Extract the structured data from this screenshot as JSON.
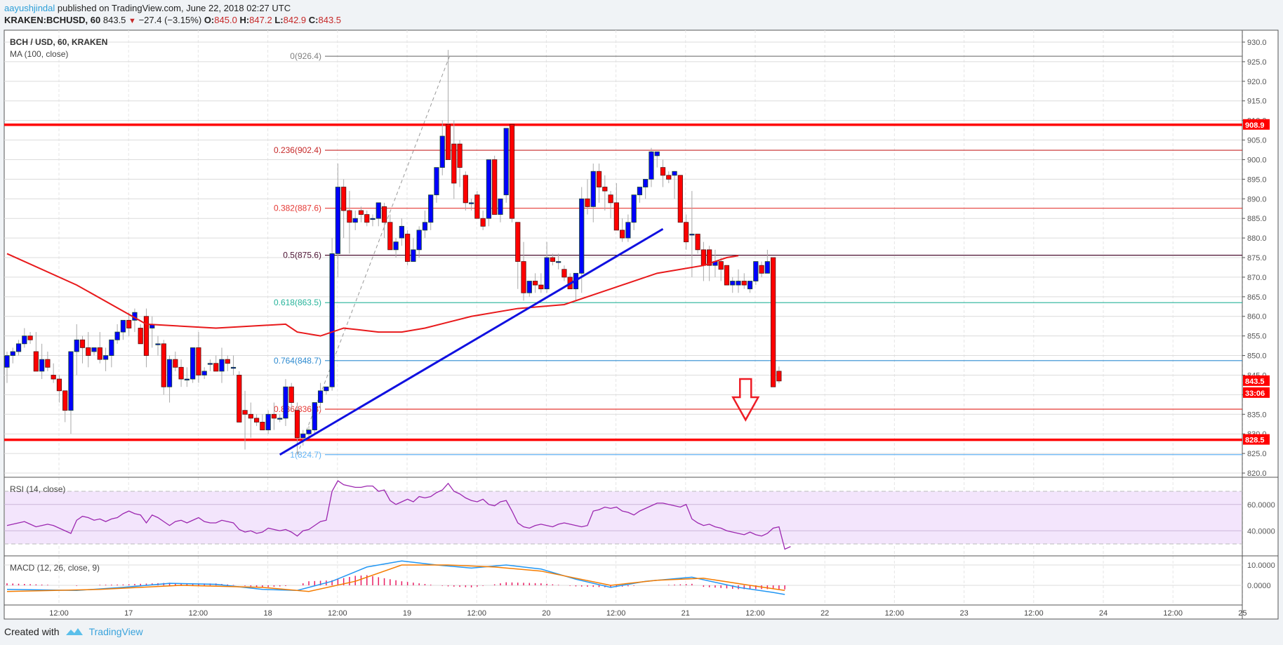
{
  "header": {
    "author": "aayushjindal",
    "published": "published on TradingView.com, June 22, 2018 02:27 UTC",
    "symbol": "KRAKEN:BCHUSD, 60",
    "last": "843.5",
    "change": "−27.4 (−3.15%)",
    "open_label": "O:",
    "open": "845.0",
    "high_label": "H:",
    "high": "847.2",
    "low_label": "L:",
    "low": "842.9",
    "close_label": "C:",
    "close": "843.5",
    "direction_icon": "triangle-down-icon"
  },
  "legend": {
    "title": "BCH / USD, 60, KRAKEN",
    "ma": "MA (100, close)",
    "rsi": "RSI (14, close)",
    "macd": "MACD (12, 26, close, 9)"
  },
  "footer": {
    "created_with": "Created with",
    "brand": "TradingView"
  },
  "colors": {
    "bull": "#0000ff",
    "bear": "#ff0000",
    "ma": "#e8191b",
    "support_resistance": "#ff0000",
    "trendline": "#1010e0",
    "rsi": "#9c27b0",
    "rsi_band": "#f3e5fc",
    "macd_line": "#2196f3",
    "signal_line": "#f57c00",
    "histogram": "#e91e63",
    "fib_0": "#808080",
    "fib_236": "#c62828",
    "fib_382": "#e53935",
    "fib_5": "#4a1030",
    "fib_618": "#26b39a",
    "fib_764": "#2e8bd0",
    "fib_886": "#e53935",
    "fib_1": "#64b5f6"
  },
  "chart_data": {
    "type": "candlestick",
    "title": "BCH / USD, 60, KRAKEN",
    "price_axis": {
      "min": 820,
      "max": 930,
      "ticks": [
        "930.0",
        "925.0",
        "920.0",
        "915.0",
        "910.0",
        "905.0",
        "900.0",
        "895.0",
        "890.0",
        "885.0",
        "880.0",
        "875.0",
        "870.0",
        "865.0",
        "860.0",
        "855.0",
        "850.0",
        "845.0",
        "840.0",
        "835.0",
        "830.0",
        "825.0",
        "820.0"
      ]
    },
    "time_axis": [
      "12:00",
      "17",
      "12:00",
      "18",
      "12:00",
      "19",
      "12:00",
      "20",
      "12:00",
      "21",
      "12:00",
      "22",
      "12:00",
      "23",
      "12:00",
      "24",
      "12:00",
      "25"
    ],
    "price_labels": [
      {
        "value": "908.9",
        "role": "resistance"
      },
      {
        "value": "843.5",
        "role": "last-price"
      },
      {
        "value": "33:06",
        "role": "bar-countdown"
      },
      {
        "value": "828.5",
        "role": "support"
      }
    ],
    "horizontal_levels": {
      "resistance": 908.9,
      "support": 828.5
    },
    "fibonacci": [
      {
        "ratio": "0",
        "price": 926.4,
        "label": "0(926.4)"
      },
      {
        "ratio": "0.236",
        "price": 902.4,
        "label": "0.236(902.4)"
      },
      {
        "ratio": "0.382",
        "price": 887.6,
        "label": "0.382(887.6)"
      },
      {
        "ratio": "0.5",
        "price": 875.6,
        "label": "0.5(875.6)"
      },
      {
        "ratio": "0.618",
        "price": 863.5,
        "label": "0.618(863.5)"
      },
      {
        "ratio": "0.764",
        "price": 848.7,
        "label": "0.764(848.7)"
      },
      {
        "ratio": "0.886",
        "price": 836.3,
        "label": "0.886(836.3)"
      },
      {
        "ratio": "1",
        "price": 824.7,
        "label": "1(824.7)"
      }
    ],
    "trendline": {
      "from": {
        "bar": 47,
        "price": 824.7
      },
      "to": {
        "bar": 113,
        "price": 882.3
      }
    },
    "down_arrow": {
      "bar": 127,
      "price_top": 844,
      "price_tip": 835
    },
    "candles_ohlc": [
      [
        847,
        851,
        843,
        850
      ],
      [
        850,
        852,
        848,
        851
      ],
      [
        851,
        854,
        850,
        853
      ],
      [
        853,
        857,
        852,
        855
      ],
      [
        855,
        856,
        853,
        854
      ],
      [
        851,
        856,
        847,
        846
      ],
      [
        846,
        853,
        844,
        849
      ],
      [
        849,
        851,
        846,
        847
      ],
      [
        845,
        848,
        843,
        844
      ],
      [
        844,
        845,
        838,
        841
      ],
      [
        841,
        841,
        833,
        836
      ],
      [
        836,
        849,
        830,
        851
      ],
      [
        851,
        858,
        845,
        854
      ],
      [
        854,
        855,
        848,
        852
      ],
      [
        852,
        856,
        847,
        850
      ],
      [
        851,
        852,
        850,
        852
      ],
      [
        852,
        856,
        848,
        849
      ],
      [
        849,
        852,
        846,
        850
      ],
      [
        850,
        854,
        847,
        854
      ],
      [
        854,
        858,
        853,
        856
      ],
      [
        856,
        859,
        854,
        859
      ],
      [
        859,
        861,
        855,
        857
      ],
      [
        859,
        862,
        856,
        861
      ],
      [
        857,
        858,
        853,
        853
      ],
      [
        860,
        862,
        847,
        850
      ],
      [
        857,
        860,
        852,
        858
      ],
      [
        853,
        855,
        850,
        853
      ],
      [
        853,
        854,
        840,
        842
      ],
      [
        842,
        850,
        838,
        849
      ],
      [
        849,
        851,
        846,
        847
      ],
      [
        847,
        849,
        842,
        844
      ],
      [
        844,
        847,
        842,
        844
      ],
      [
        844,
        852,
        843,
        852
      ],
      [
        852,
        856,
        843,
        845
      ],
      [
        845,
        847,
        844,
        846
      ],
      [
        848,
        849,
        846,
        848
      ],
      [
        848,
        850,
        846,
        846
      ],
      [
        846,
        852,
        843,
        849
      ],
      [
        849,
        850,
        846,
        848
      ],
      [
        847,
        850,
        845,
        847
      ],
      [
        845,
        846,
        833,
        833
      ],
      [
        836,
        841,
        826,
        835
      ],
      [
        835,
        838,
        829,
        834
      ],
      [
        834,
        835,
        832,
        833
      ],
      [
        833,
        835,
        831,
        831
      ],
      [
        831,
        836,
        830,
        835
      ],
      [
        835,
        838,
        831,
        834
      ],
      [
        834,
        835,
        833,
        834
      ],
      [
        834,
        844,
        832,
        842
      ],
      [
        842,
        843,
        836,
        838
      ],
      [
        836,
        838,
        824.7,
        829
      ],
      [
        829,
        831,
        827,
        830
      ],
      [
        830,
        832,
        829,
        831
      ],
      [
        831,
        838,
        830,
        838
      ],
      [
        838,
        843,
        836,
        841
      ],
      [
        841,
        842,
        840,
        842
      ],
      [
        842,
        880,
        841,
        876
      ],
      [
        876,
        899,
        870,
        893
      ],
      [
        893,
        895,
        880,
        887
      ],
      [
        887,
        892,
        876,
        884
      ],
      [
        884,
        887,
        882,
        885
      ],
      [
        887,
        888,
        884,
        886
      ],
      [
        886,
        887,
        883,
        884
      ],
      [
        885,
        886,
        883,
        885
      ],
      [
        885,
        889,
        883,
        889
      ],
      [
        888,
        889,
        880,
        884
      ],
      [
        884,
        886,
        877,
        877
      ],
      [
        877,
        880,
        875,
        879
      ],
      [
        880,
        885,
        878,
        883
      ],
      [
        881,
        882,
        873,
        874
      ],
      [
        874,
        880,
        874,
        877
      ],
      [
        877,
        883,
        875,
        882
      ],
      [
        882,
        887,
        880,
        884
      ],
      [
        884,
        891,
        882,
        891
      ],
      [
        891,
        895,
        889,
        898
      ],
      [
        898,
        910,
        896,
        906
      ],
      [
        909,
        928,
        903,
        900
      ],
      [
        904,
        910,
        890,
        894
      ],
      [
        904,
        905,
        893,
        898
      ],
      [
        896,
        897,
        887,
        889
      ],
      [
        889,
        890,
        887,
        889
      ],
      [
        891,
        892,
        885,
        885
      ],
      [
        885,
        887,
        882,
        883
      ],
      [
        885,
        897,
        883,
        900
      ],
      [
        900,
        901,
        886,
        886
      ],
      [
        886,
        890,
        884,
        890
      ],
      [
        891,
        898,
        889,
        908
      ],
      [
        909,
        909,
        884,
        885
      ],
      [
        884,
        881,
        867,
        874
      ],
      [
        874,
        879,
        864,
        866
      ],
      [
        866,
        869,
        865,
        869
      ],
      [
        869,
        871,
        866,
        868
      ],
      [
        868,
        871,
        866,
        867
      ],
      [
        867,
        879,
        866,
        875
      ],
      [
        875,
        876,
        873,
        874
      ],
      [
        874,
        876,
        872,
        874
      ],
      [
        872,
        873,
        869,
        870
      ],
      [
        870,
        871,
        868,
        867
      ],
      [
        867,
        869,
        864,
        871
      ],
      [
        871,
        893,
        866,
        890
      ],
      [
        890,
        895,
        886,
        888
      ],
      [
        888,
        899,
        884,
        897
      ],
      [
        897,
        899,
        889,
        893
      ],
      [
        893,
        896,
        887,
        892
      ],
      [
        891,
        892,
        885,
        889
      ],
      [
        889,
        894,
        885,
        882
      ],
      [
        882,
        885,
        879,
        880
      ],
      [
        880,
        886,
        879,
        884
      ],
      [
        884,
        891,
        882,
        891
      ],
      [
        891,
        892,
        889,
        893
      ],
      [
        893,
        895,
        890,
        895
      ],
      [
        895,
        903,
        893,
        902
      ],
      [
        901,
        902,
        898,
        902
      ],
      [
        898,
        900,
        893,
        896
      ],
      [
        896,
        897,
        894,
        895
      ],
      [
        896,
        897,
        890,
        897
      ],
      [
        896,
        896,
        884,
        884
      ],
      [
        884,
        886,
        877,
        879
      ],
      [
        881,
        892,
        870,
        881
      ],
      [
        881,
        881,
        876,
        877
      ],
      [
        877,
        879,
        869,
        873
      ],
      [
        877,
        878,
        869,
        873
      ],
      [
        873,
        877,
        870,
        874
      ],
      [
        874,
        875,
        869,
        872
      ],
      [
        873,
        871,
        869,
        868
      ],
      [
        868,
        870,
        866,
        869
      ],
      [
        868,
        872,
        866,
        869
      ],
      [
        869,
        871,
        867,
        868
      ],
      [
        867,
        869,
        866,
        869
      ],
      [
        869,
        874,
        868,
        874
      ],
      [
        873,
        874,
        870,
        871
      ],
      [
        871,
        877,
        871,
        874
      ],
      [
        875,
        875,
        843,
        842
      ],
      [
        846,
        847.2,
        842.9,
        843.5
      ]
    ],
    "ma100": [
      [
        0,
        876
      ],
      [
        12,
        868
      ],
      [
        24,
        858
      ],
      [
        36,
        857
      ],
      [
        48,
        858
      ],
      [
        50,
        856
      ],
      [
        54,
        855
      ],
      [
        58,
        857
      ],
      [
        64,
        856
      ],
      [
        68,
        856
      ],
      [
        72,
        857
      ],
      [
        80,
        860
      ],
      [
        88,
        862
      ],
      [
        96,
        863
      ],
      [
        104,
        867
      ],
      [
        112,
        871
      ],
      [
        120,
        873
      ],
      [
        124,
        875
      ],
      [
        126,
        875.5
      ]
    ],
    "rsi": {
      "levels": [
        70,
        30
      ],
      "gridlines": [
        "60.0000",
        "40.0000"
      ],
      "values": [
        44,
        45,
        46,
        47,
        45,
        43,
        44,
        45,
        44,
        42,
        40,
        38,
        48,
        51,
        50,
        48,
        49,
        47,
        49,
        50,
        53,
        55,
        53,
        52,
        46,
        52,
        50,
        47,
        44,
        47,
        48,
        46,
        48,
        50,
        47,
        46,
        46,
        48,
        47,
        46,
        41,
        39,
        40,
        38,
        39,
        42,
        41,
        40,
        41,
        39,
        36,
        40,
        41,
        44,
        47,
        48,
        70,
        78,
        75,
        74,
        73,
        73,
        74,
        74,
        70,
        71,
        63,
        60,
        62,
        64,
        62,
        66,
        65,
        66,
        69,
        71,
        76,
        70,
        68,
        65,
        63,
        62,
        64,
        60,
        59,
        62,
        63,
        55,
        46,
        43,
        42,
        44,
        45,
        44,
        43,
        45,
        46,
        45,
        44,
        43,
        44,
        55,
        56,
        58,
        57,
        58,
        55,
        54,
        52,
        55,
        57,
        59,
        61,
        61,
        60,
        59,
        58,
        60,
        49,
        46,
        44,
        45,
        43,
        42,
        40,
        39,
        38,
        37,
        39,
        37,
        36,
        38,
        42,
        43,
        26,
        28
      ]
    },
    "macd": {
      "gridlines": [
        "10.0000",
        "0.0000"
      ],
      "macd_line": [
        [
          0,
          -2
        ],
        [
          12,
          -2.5
        ],
        [
          20,
          -1
        ],
        [
          28,
          1
        ],
        [
          36,
          0.5
        ],
        [
          44,
          -2
        ],
        [
          50,
          -2.5
        ],
        [
          56,
          2
        ],
        [
          62,
          9
        ],
        [
          68,
          12
        ],
        [
          74,
          10
        ],
        [
          80,
          8.5
        ],
        [
          86,
          10
        ],
        [
          92,
          8
        ],
        [
          98,
          3
        ],
        [
          104,
          -1
        ],
        [
          110,
          2
        ],
        [
          118,
          4
        ],
        [
          126,
          -1
        ],
        [
          132,
          -3.5
        ],
        [
          134,
          -4.5
        ]
      ],
      "signal_line": [
        [
          0,
          -3
        ],
        [
          16,
          -2
        ],
        [
          30,
          0
        ],
        [
          44,
          -1
        ],
        [
          52,
          -3
        ],
        [
          60,
          2
        ],
        [
          68,
          10
        ],
        [
          76,
          10
        ],
        [
          84,
          9
        ],
        [
          92,
          7
        ],
        [
          104,
          0
        ],
        [
          112,
          2.5
        ],
        [
          120,
          3.5
        ],
        [
          128,
          0
        ],
        [
          134,
          -2.5
        ]
      ]
    }
  }
}
